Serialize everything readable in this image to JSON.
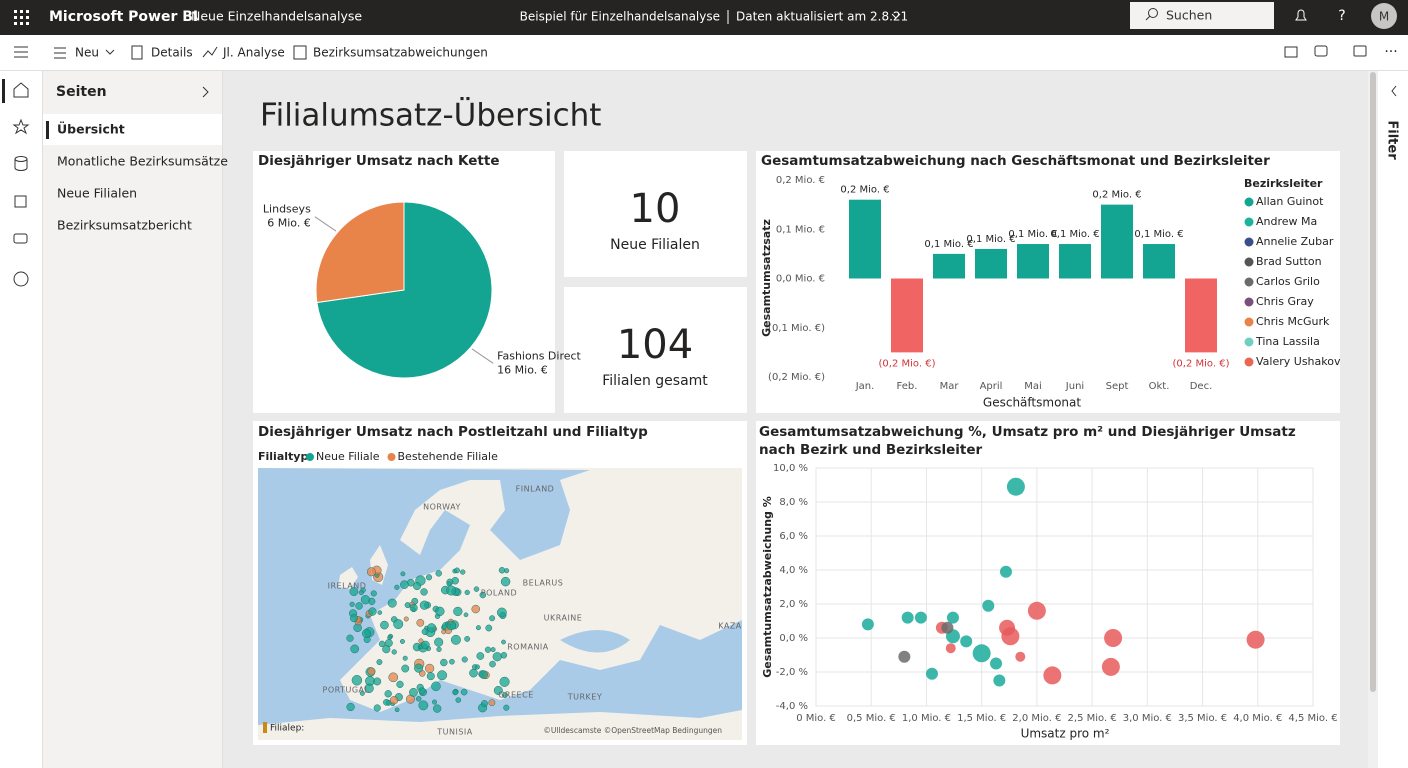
{
  "topbar": {
    "brand": "Microsoft Power BI",
    "report": "Neue Einzelhandelsanalyse",
    "sample": "Beispiel für Einzelhandelsanalyse",
    "refreshed": "Daten aktualisiert am 2.8.21",
    "search": "Suchen",
    "avatar": "M"
  },
  "toolbar": {
    "items": [
      "Neu",
      "Details",
      "Jl. Analyse",
      "Bezirksumsatzabweichungen"
    ]
  },
  "sidebar": {
    "title": "Seiten",
    "pages": [
      "Übersicht",
      "Monatliche Bezirksumsätze",
      "Neue Filialen",
      "Bezirksumsatzbericht"
    ]
  },
  "filter_pane": {
    "title": "Filter"
  },
  "page_title": "Filialumsatz-Übersicht",
  "cards": [
    {
      "value": 10,
      "label": "Neue Filialen"
    },
    {
      "value": 104,
      "label": "Filialen gesamt"
    }
  ],
  "chart_data": [
    {
      "type": "pie",
      "title": "Diesjähriger Umsatz nach Kette",
      "categories": [
        "Fashions Direct",
        "Lindseys"
      ],
      "values": [
        16,
        6
      ],
      "value_labels": [
        "16 Mio. €",
        "6 Mio. €"
      ],
      "colors": [
        "#13a592",
        "#e8834a"
      ]
    },
    {
      "type": "bar",
      "title": "Gesamtumsatzabweichung nach Geschäftsmonat und Bezirksleiter",
      "x_label": "Geschäftsmonat",
      "y_label": "Gesamtumsatzsatz",
      "categories": [
        "Jan.",
        "Feb.",
        "Mar",
        "April",
        "Mai",
        "Juni",
        "Sept",
        "Okt.",
        "Dec."
      ],
      "values": [
        0.16,
        -0.15,
        0.05,
        0.06,
        0.07,
        0.07,
        0.15,
        0.07,
        -0.15
      ],
      "value_labels": [
        "0,2 Mio. €",
        "(0,2 Mio. €)",
        "0,1 Mio. €",
        "0,1 Mio. €",
        "0,1 Mio. €",
        "0,1 Mio. €",
        "0,2 Mio. €",
        "0,1 Mio. €",
        "(0,2 Mio. €)"
      ],
      "color": "#13a592",
      "negative_color": "#f06464",
      "ylim": [
        -0.2,
        0.2
      ],
      "yticks": [
        {
          "value": 0.2,
          "label": "0,2 Mio. €"
        },
        {
          "value": 0.1,
          "label": "0,1 Mio. €"
        },
        {
          "value": 0,
          "label": "0,0 Mio. €"
        },
        {
          "value": -0.1,
          "label": "(0,1 Mio. €)"
        },
        {
          "value": -0.2,
          "label": "(0,2 Mio. €)"
        }
      ],
      "legend_title": "Bezirksleiter",
      "legend": [
        {
          "name": "Allan Guinot",
          "color": "#13a592"
        },
        {
          "name": "Andrew Ma",
          "color": "#1db39b"
        },
        {
          "name": "Annelie Zubar",
          "color": "#3c4d8c"
        },
        {
          "name": "Brad Sutton",
          "color": "#555555"
        },
        {
          "name": "Carlos Grilo",
          "color": "#6b6b6b"
        },
        {
          "name": "Chris Gray",
          "color": "#7b4f7b"
        },
        {
          "name": "Chris McGurk",
          "color": "#e8834a"
        },
        {
          "name": "Tina Lassila",
          "color": "#6fd0c0"
        },
        {
          "name": "Valery Ushakov",
          "color": "#e8674f"
        }
      ]
    },
    {
      "type": "map",
      "title": "Diesjähriger Umsatz nach Postleitzahl und Filialtyp",
      "legend_title": "Filialtyp:",
      "legend": [
        {
          "name": "Neue Filiale",
          "color": "#13a592"
        },
        {
          "name": "Bestehende Filiale",
          "color": "#e8834a"
        }
      ],
      "labels": [
        "FINLAND",
        "NORWAY",
        "IRELAND",
        "BELARUS",
        "POLAND",
        "UKRAINE",
        "ROMANIA",
        "KAZA",
        "PORTUGAL",
        "GREECE",
        "TURKEY",
        "TUNISIA"
      ],
      "corner_label": "Filialep:",
      "attribution": "©Ulldescamste ©OpenStreetMap Bedingungen"
    },
    {
      "type": "scatter",
      "title": "Gesamtumsatzabweichung %, Umsatz pro m² und Diesjähriger Umsatz nach Bezirk und Bezirksleiter",
      "x_label": "Umsatz pro m²",
      "y_label": "Gesamtumsatzabweichung %",
      "xlim": [
        0,
        4.5
      ],
      "ylim": [
        -4,
        10
      ],
      "grid": true,
      "xticks": [
        {
          "value": 0,
          "label": "0 Mio. €"
        },
        {
          "value": 0.5,
          "label": "0,5 Mio. €"
        },
        {
          "value": 1,
          "label": "1,0 Mio. €"
        },
        {
          "value": 1.5,
          "label": "1,5 Mio. €"
        },
        {
          "value": 2,
          "label": "2,0 Mio. €"
        },
        {
          "value": 2.5,
          "label": "2,5 Mio. €"
        },
        {
          "value": 3,
          "label": "3,0 Mio. €"
        },
        {
          "value": 3.5,
          "label": "3,5 Mio. €"
        },
        {
          "value": 4,
          "label": "4,0 Mio. €"
        },
        {
          "value": 4.5,
          "label": "4,5 Mio. €"
        }
      ],
      "yticks": [
        {
          "value": 10,
          "label": "10,0 %"
        },
        {
          "value": 8,
          "label": "8,0 %"
        },
        {
          "value": 6,
          "label": "6,0 %"
        },
        {
          "value": 4,
          "label": "4,0 %"
        },
        {
          "value": 2,
          "label": "2,0 %"
        },
        {
          "value": 0,
          "label": "0,0 %"
        },
        {
          "value": -2,
          "label": "-2,0 %"
        },
        {
          "value": -4,
          "label": "-4,0 %"
        }
      ],
      "series": [
        {
          "color": "#1aab9b",
          "x": [
            1.81,
            0.47,
            0.83,
            0.95,
            1.24,
            1.72,
            1.56,
            1.24,
            1.36,
            1.5,
            1.63,
            1.66,
            1.05
          ],
          "y": [
            8.9,
            0.8,
            1.2,
            1.2,
            1.2,
            3.9,
            1.9,
            0.1,
            -0.2,
            -0.9,
            -1.5,
            -2.5,
            -2.1
          ],
          "sizes": [
            9,
            6,
            6,
            6,
            6,
            6,
            6,
            7,
            6,
            9,
            6,
            6,
            6
          ]
        },
        {
          "color": "#e85b5b",
          "x": [
            2.0,
            1.73,
            1.76,
            2.69,
            2.67,
            3.98,
            2.14,
            1.85,
            1.14,
            1.22
          ],
          "y": [
            1.6,
            0.6,
            0.1,
            0,
            -1.7,
            -0.1,
            -2.2,
            -1.1,
            0.6,
            -0.6
          ],
          "sizes": [
            9,
            8,
            9,
            9,
            9,
            9,
            9,
            5,
            6,
            5
          ]
        },
        {
          "color": "#6b6b6b",
          "x": [
            0.8,
            1.19
          ],
          "y": [
            -1.1,
            0.6
          ],
          "sizes": [
            6,
            6
          ]
        }
      ]
    }
  ]
}
